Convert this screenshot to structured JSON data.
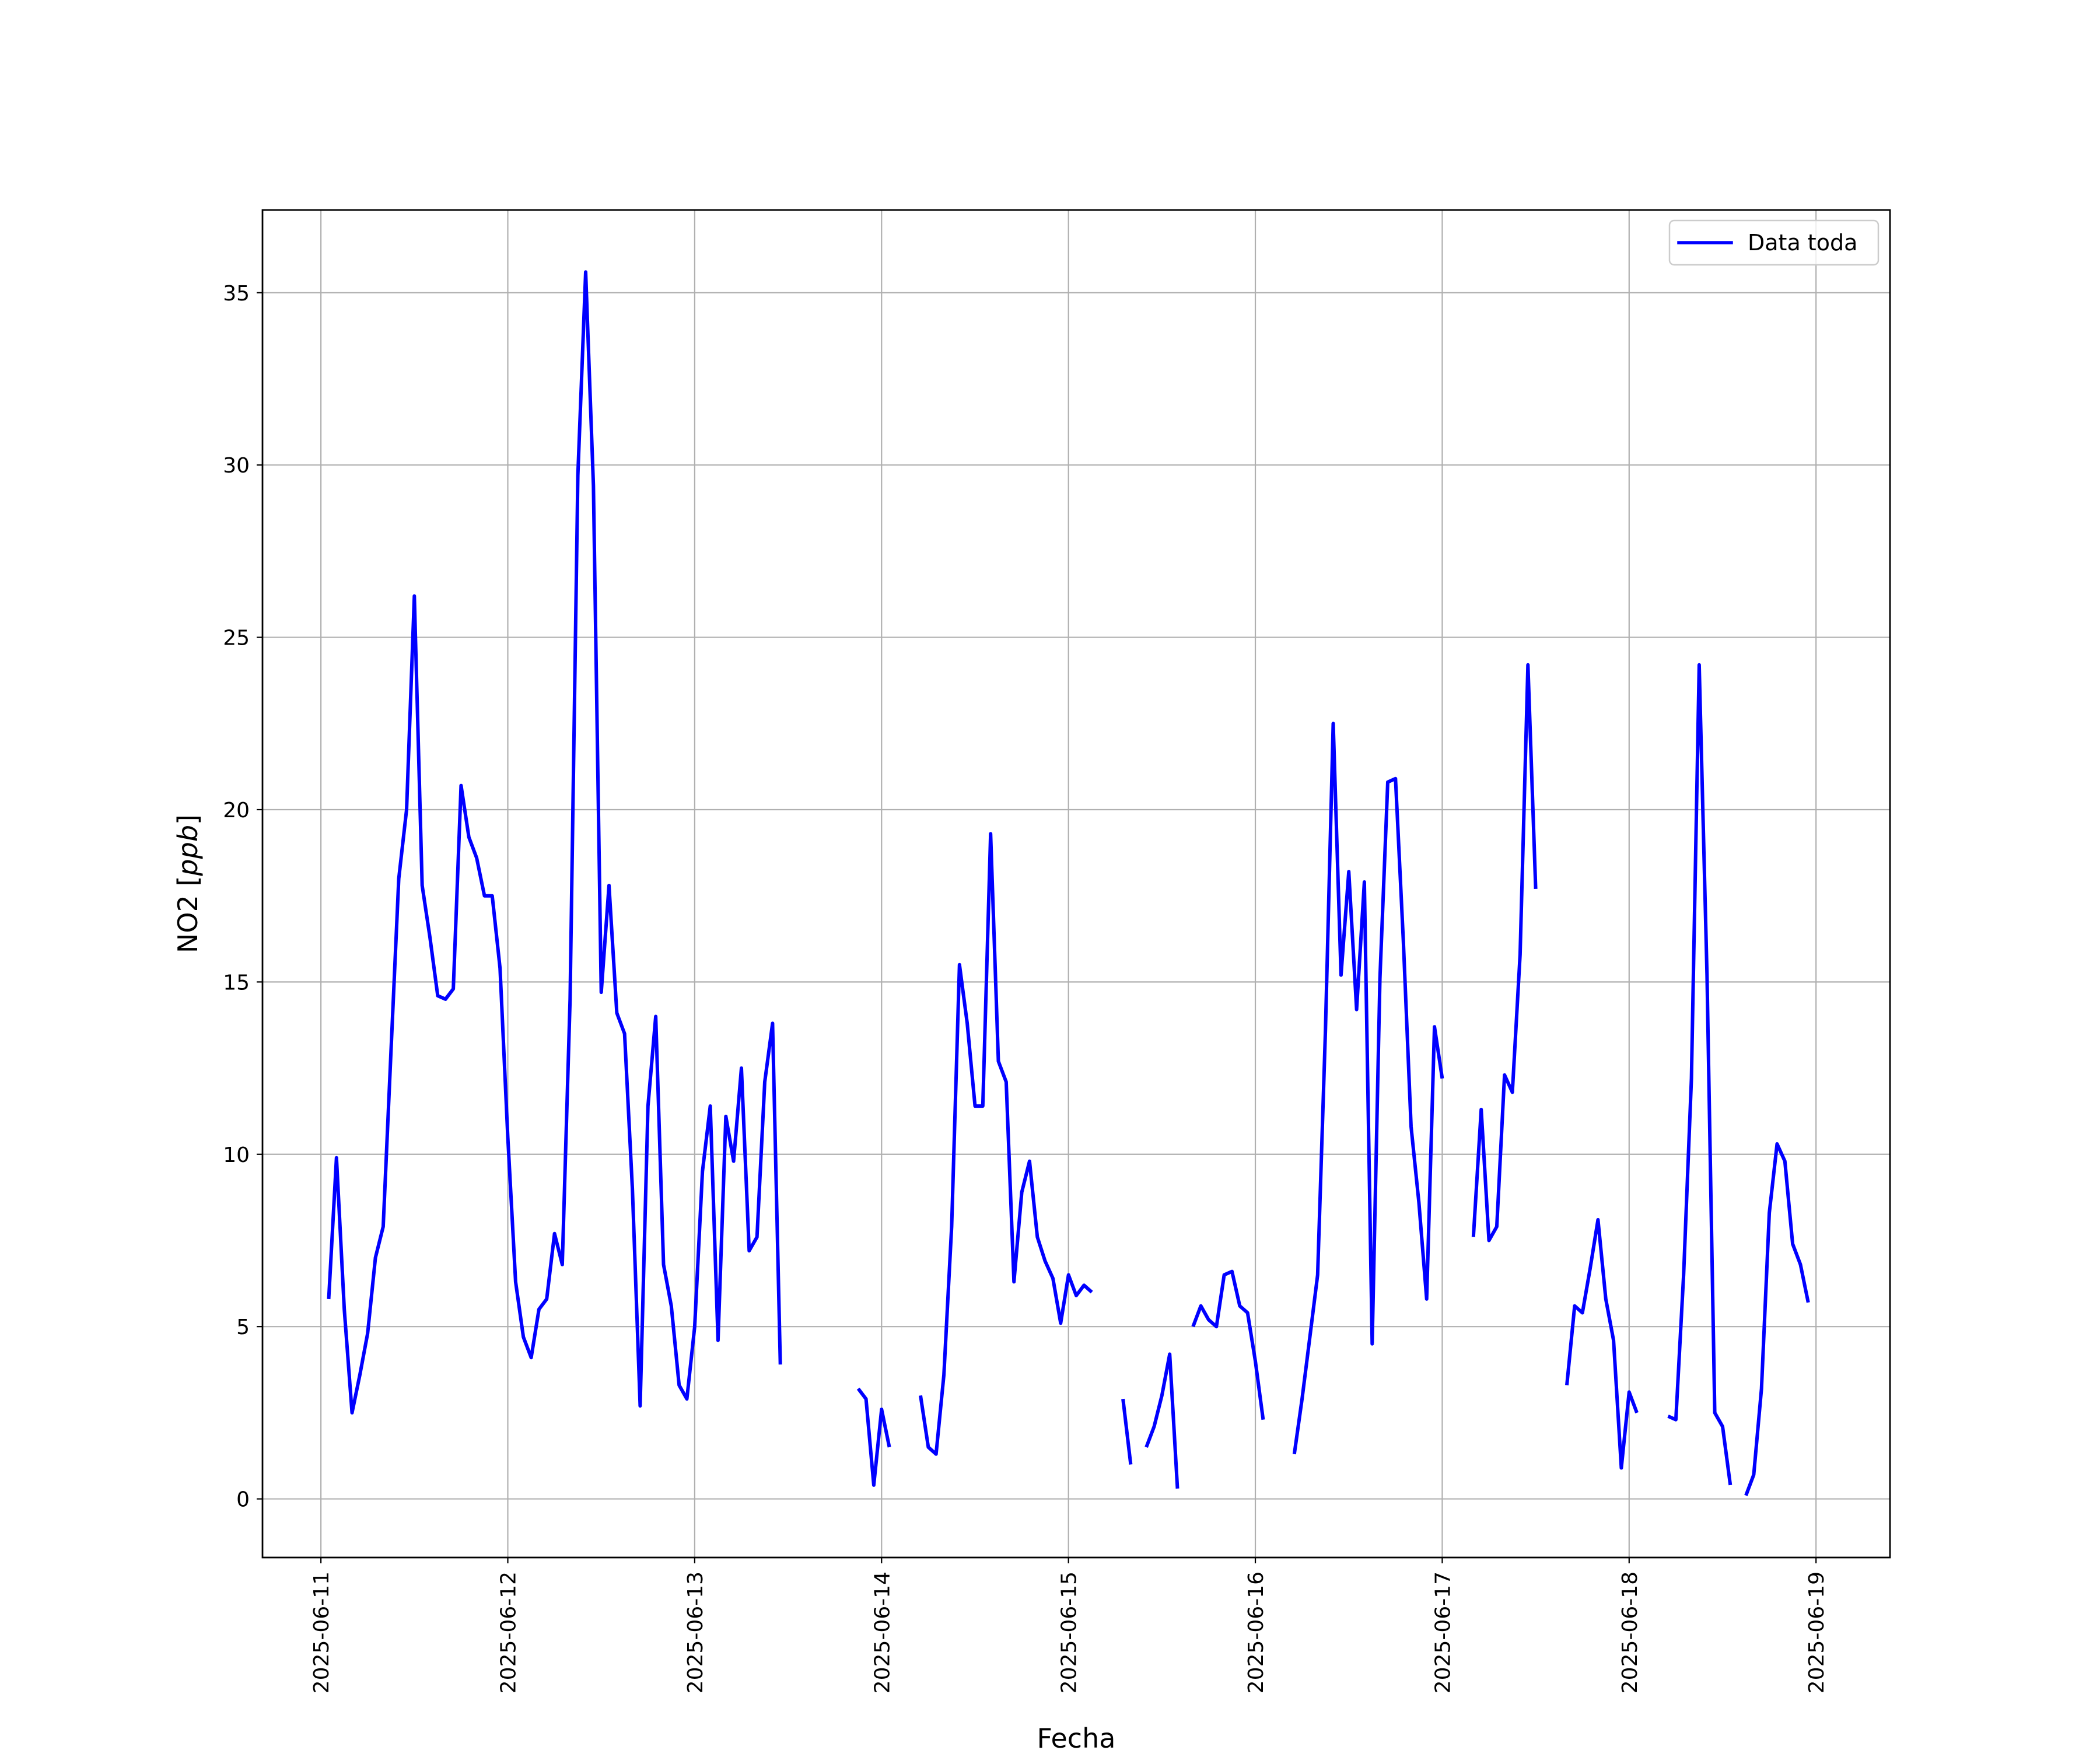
{
  "colors": {
    "series": "#0000ff",
    "grid": "#b0b0b0",
    "axes": "#000000",
    "legend_border": "#cccccc",
    "background": "#ffffff"
  },
  "chart_data": {
    "type": "line",
    "title": "",
    "xlabel": "Fecha",
    "ylabel_plain": "NO2 [",
    "ylabel_math": "ppb",
    "ylabel_close": "]",
    "x_axis_type": "datetime",
    "xlim": [
      "2025-06-10T16:30",
      "2025-06-19T09:30"
    ],
    "ylim": [
      -1.7,
      37.4
    ],
    "xticks": [
      "2025-06-11",
      "2025-06-12",
      "2025-06-13",
      "2025-06-14",
      "2025-06-15",
      "2025-06-16",
      "2025-06-17",
      "2025-06-18",
      "2025-06-19"
    ],
    "yticks": [
      0,
      5,
      10,
      15,
      20,
      25,
      30,
      35
    ],
    "ytick_labels": [
      "0",
      "5",
      "10",
      "15",
      "20",
      "25",
      "30",
      "35"
    ],
    "grid": true,
    "legend_position": "upper right",
    "series": [
      {
        "name": "Data toda",
        "segments": [
          [
            [
              "2025-06-11T01:00",
              5.8
            ],
            [
              "2025-06-11T02:00",
              9.9
            ],
            [
              "2025-06-11T03:00",
              5.5
            ],
            [
              "2025-06-11T04:00",
              2.5
            ],
            [
              "2025-06-11T05:00",
              3.6
            ],
            [
              "2025-06-11T06:00",
              4.8
            ],
            [
              "2025-06-11T07:00",
              7.0
            ],
            [
              "2025-06-11T08:00",
              7.9
            ],
            [
              "2025-06-11T09:00",
              13.0
            ],
            [
              "2025-06-11T10:00",
              18.0
            ],
            [
              "2025-06-11T11:00",
              20.0
            ],
            [
              "2025-06-11T12:00",
              26.2
            ],
            [
              "2025-06-11T13:00",
              17.8
            ],
            [
              "2025-06-11T14:00",
              16.3
            ],
            [
              "2025-06-11T15:00",
              14.6
            ],
            [
              "2025-06-11T16:00",
              14.5
            ],
            [
              "2025-06-11T17:00",
              14.8
            ],
            [
              "2025-06-11T18:00",
              20.7
            ],
            [
              "2025-06-11T19:00",
              19.2
            ],
            [
              "2025-06-11T20:00",
              18.6
            ],
            [
              "2025-06-11T21:00",
              17.5
            ],
            [
              "2025-06-11T22:00",
              17.5
            ],
            [
              "2025-06-11T23:00",
              15.4
            ],
            [
              "2025-06-12T00:00",
              10.5
            ],
            [
              "2025-06-12T01:00",
              6.3
            ],
            [
              "2025-06-12T02:00",
              4.7
            ],
            [
              "2025-06-12T03:00",
              4.1
            ],
            [
              "2025-06-12T04:00",
              5.5
            ],
            [
              "2025-06-12T05:00",
              5.8
            ],
            [
              "2025-06-12T06:00",
              7.7
            ],
            [
              "2025-06-12T07:00",
              6.8
            ],
            [
              "2025-06-12T08:00",
              14.5
            ],
            [
              "2025-06-12T09:00",
              29.7
            ],
            [
              "2025-06-12T10:00",
              35.6
            ],
            [
              "2025-06-12T11:00",
              29.4
            ],
            [
              "2025-06-12T12:00",
              14.7
            ],
            [
              "2025-06-12T13:00",
              17.8
            ],
            [
              "2025-06-12T14:00",
              14.1
            ],
            [
              "2025-06-12T15:00",
              13.5
            ],
            [
              "2025-06-12T16:00",
              9.0
            ],
            [
              "2025-06-12T17:00",
              2.7
            ],
            [
              "2025-06-12T18:00",
              11.4
            ],
            [
              "2025-06-12T19:00",
              14.0
            ],
            [
              "2025-06-12T20:00",
              6.8
            ],
            [
              "2025-06-12T21:00",
              5.6
            ],
            [
              "2025-06-12T22:00",
              3.3
            ],
            [
              "2025-06-12T23:00",
              2.9
            ],
            [
              "2025-06-13T00:00",
              5.0
            ],
            [
              "2025-06-13T01:00",
              9.5
            ],
            [
              "2025-06-13T02:00",
              11.4
            ],
            [
              "2025-06-13T03:00",
              4.6
            ],
            [
              "2025-06-13T04:00",
              11.1
            ],
            [
              "2025-06-13T05:00",
              9.8
            ],
            [
              "2025-06-13T06:00",
              12.5
            ],
            [
              "2025-06-13T07:00",
              7.2
            ],
            [
              "2025-06-13T08:00",
              7.6
            ],
            [
              "2025-06-13T09:00",
              12.1
            ],
            [
              "2025-06-13T10:00",
              13.8
            ],
            [
              "2025-06-13T11:00",
              3.9
            ]
          ],
          [
            [
              "2025-06-13T21:00",
              3.2
            ],
            [
              "2025-06-13T22:00",
              2.9
            ],
            [
              "2025-06-13T23:00",
              0.4
            ],
            [
              "2025-06-14T00:00",
              2.6
            ],
            [
              "2025-06-14T01:00",
              1.5
            ]
          ],
          [
            [
              "2025-06-14T05:00",
              3.0
            ],
            [
              "2025-06-14T06:00",
              1.5
            ],
            [
              "2025-06-14T07:00",
              1.3
            ],
            [
              "2025-06-14T08:00",
              3.6
            ],
            [
              "2025-06-14T09:00",
              7.9
            ],
            [
              "2025-06-14T10:00",
              15.5
            ],
            [
              "2025-06-14T11:00",
              13.8
            ],
            [
              "2025-06-14T12:00",
              11.4
            ],
            [
              "2025-06-14T13:00",
              11.4
            ],
            [
              "2025-06-14T14:00",
              19.3
            ],
            [
              "2025-06-14T15:00",
              12.7
            ],
            [
              "2025-06-14T16:00",
              12.1
            ],
            [
              "2025-06-14T17:00",
              6.3
            ],
            [
              "2025-06-14T18:00",
              8.9
            ],
            [
              "2025-06-14T19:00",
              9.8
            ],
            [
              "2025-06-14T20:00",
              7.6
            ],
            [
              "2025-06-14T21:00",
              6.9
            ],
            [
              "2025-06-14T22:00",
              6.4
            ],
            [
              "2025-06-14T23:00",
              5.1
            ],
            [
              "2025-06-15T00:00",
              6.5
            ],
            [
              "2025-06-15T01:00",
              5.9
            ],
            [
              "2025-06-15T02:00",
              6.2
            ],
            [
              "2025-06-15T03:00",
              6.0
            ]
          ],
          [
            [
              "2025-06-15T07:00",
              2.9
            ],
            [
              "2025-06-15T08:00",
              1.0
            ]
          ],
          [
            [
              "2025-06-15T10:00",
              1.5
            ],
            [
              "2025-06-15T11:00",
              2.1
            ],
            [
              "2025-06-15T12:00",
              3.0
            ],
            [
              "2025-06-15T13:00",
              4.2
            ],
            [
              "2025-06-15T14:00",
              0.3
            ]
          ],
          [
            [
              "2025-06-15T16:00",
              5.0
            ],
            [
              "2025-06-15T17:00",
              5.6
            ],
            [
              "2025-06-15T18:00",
              5.2
            ],
            [
              "2025-06-15T19:00",
              5.0
            ],
            [
              "2025-06-15T20:00",
              6.5
            ],
            [
              "2025-06-15T21:00",
              6.6
            ],
            [
              "2025-06-15T22:00",
              5.6
            ],
            [
              "2025-06-15T23:00",
              5.4
            ],
            [
              "2025-06-16T00:00",
              4.0
            ],
            [
              "2025-06-16T01:00",
              2.3
            ]
          ],
          [
            [
              "2025-06-16T05:00",
              1.3
            ],
            [
              "2025-06-16T06:00",
              2.9
            ],
            [
              "2025-06-16T07:00",
              4.7
            ],
            [
              "2025-06-16T08:00",
              6.5
            ],
            [
              "2025-06-16T09:00",
              13.6
            ],
            [
              "2025-06-16T10:00",
              22.5
            ],
            [
              "2025-06-16T11:00",
              15.2
            ],
            [
              "2025-06-16T12:00",
              18.2
            ],
            [
              "2025-06-16T13:00",
              14.2
            ],
            [
              "2025-06-16T14:00",
              17.9
            ],
            [
              "2025-06-16T15:00",
              4.5
            ],
            [
              "2025-06-16T16:00",
              15.1
            ],
            [
              "2025-06-16T17:00",
              20.8
            ],
            [
              "2025-06-16T18:00",
              20.9
            ],
            [
              "2025-06-16T19:00",
              16.2
            ],
            [
              "2025-06-16T20:00",
              10.8
            ],
            [
              "2025-06-16T21:00",
              8.6
            ],
            [
              "2025-06-16T22:00",
              5.8
            ],
            [
              "2025-06-16T23:00",
              13.7
            ],
            [
              "2025-06-17T00:00",
              12.2
            ]
          ],
          [
            [
              "2025-06-17T04:00",
              7.6
            ],
            [
              "2025-06-17T05:00",
              11.3
            ],
            [
              "2025-06-17T06:00",
              7.5
            ],
            [
              "2025-06-17T07:00",
              7.9
            ],
            [
              "2025-06-17T08:00",
              12.3
            ],
            [
              "2025-06-17T09:00",
              11.8
            ],
            [
              "2025-06-17T10:00",
              15.8
            ],
            [
              "2025-06-17T11:00",
              24.2
            ],
            [
              "2025-06-17T12:00",
              17.7
            ]
          ],
          [
            [
              "2025-06-17T16:00",
              3.3
            ],
            [
              "2025-06-17T17:00",
              5.6
            ],
            [
              "2025-06-17T18:00",
              5.4
            ],
            [
              "2025-06-17T19:00",
              6.7
            ],
            [
              "2025-06-17T20:00",
              8.1
            ],
            [
              "2025-06-17T21:00",
              5.8
            ],
            [
              "2025-06-17T22:00",
              4.6
            ],
            [
              "2025-06-17T23:00",
              0.9
            ],
            [
              "2025-06-18T00:00",
              3.1
            ],
            [
              "2025-06-18T01:00",
              2.5
            ]
          ],
          [
            [
              "2025-06-18T05:00",
              2.4
            ],
            [
              "2025-06-18T06:00",
              2.3
            ],
            [
              "2025-06-18T07:00",
              6.5
            ],
            [
              "2025-06-18T08:00",
              12.2
            ],
            [
              "2025-06-18T09:00",
              24.2
            ],
            [
              "2025-06-18T10:00",
              15.2
            ],
            [
              "2025-06-18T11:00",
              2.5
            ],
            [
              "2025-06-18T12:00",
              2.1
            ],
            [
              "2025-06-18T13:00",
              0.4
            ]
          ],
          [
            [
              "2025-06-18T15:00",
              0.1
            ],
            [
              "2025-06-18T16:00",
              0.7
            ],
            [
              "2025-06-18T17:00",
              3.2
            ],
            [
              "2025-06-18T18:00",
              8.3
            ],
            [
              "2025-06-18T19:00",
              10.3
            ],
            [
              "2025-06-18T20:00",
              9.8
            ],
            [
              "2025-06-18T21:00",
              7.4
            ],
            [
              "2025-06-18T22:00",
              6.8
            ],
            [
              "2025-06-18T23:00",
              5.7
            ]
          ]
        ]
      }
    ]
  }
}
